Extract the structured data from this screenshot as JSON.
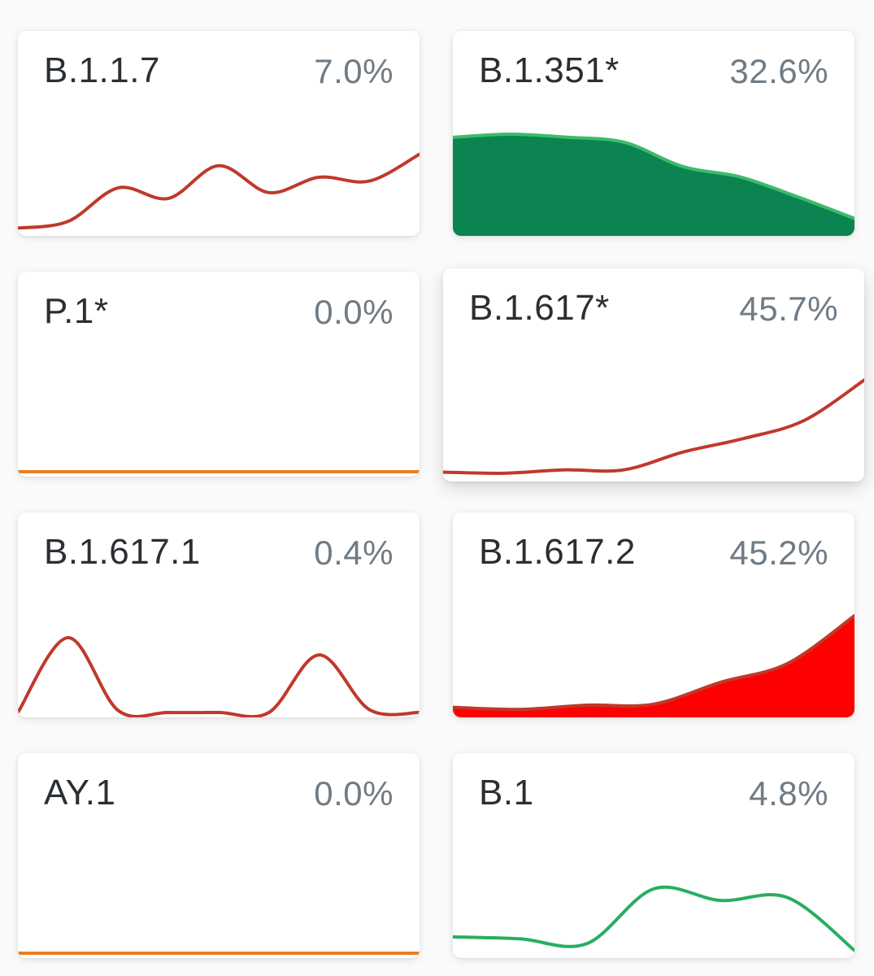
{
  "cards": [
    {
      "name": "B.1.1.7",
      "percent": "7.0%",
      "line_color": "#c0392b",
      "fill_color": null,
      "trend": [
        0.03,
        0.1,
        0.45,
        0.34,
        0.68,
        0.4,
        0.56,
        0.52,
        0.8
      ]
    },
    {
      "name": "B.1.351*",
      "percent": "32.6%",
      "line_color": "#3dbb6b",
      "fill_color": "#0b8451",
      "trend": [
        0.9,
        0.93,
        0.9,
        0.85,
        0.62,
        0.52,
        0.33,
        0.12
      ]
    },
    {
      "name": "P.1*",
      "percent": "0.0%",
      "line_color": "#e67e22",
      "fill_color": null,
      "trend": [
        0.0,
        0.0,
        0.0,
        0.0,
        0.0
      ]
    },
    {
      "name": "B.1.617*",
      "percent": "45.7%",
      "line_color": "#c0392b",
      "fill_color": null,
      "trend": [
        0.04,
        0.03,
        0.06,
        0.06,
        0.22,
        0.34,
        0.5,
        0.86
      ]
    },
    {
      "name": "B.1.617.1",
      "percent": "0.4%",
      "line_color": "#c0392b",
      "fill_color": null,
      "trend": [
        0.0,
        0.78,
        0.02,
        0.0,
        0.0,
        0.0,
        0.6,
        0.03,
        0.0
      ]
    },
    {
      "name": "B.1.617.2",
      "percent": "45.2%",
      "line_color": "#c0392b",
      "fill_color": "#ff0000",
      "trend": [
        0.05,
        0.03,
        0.07,
        0.08,
        0.29,
        0.47,
        0.93
      ]
    },
    {
      "name": "AY.1",
      "percent": "0.0%",
      "line_color": "#e67e22",
      "fill_color": null,
      "trend": [
        0.0,
        0.0,
        0.0,
        0.0,
        0.0
      ]
    },
    {
      "name": "B.1",
      "percent": "4.8%",
      "line_color": "#27ae60",
      "fill_color": null,
      "trend": [
        0.17,
        0.15,
        0.1,
        0.67,
        0.55,
        0.58,
        0.03
      ]
    }
  ]
}
